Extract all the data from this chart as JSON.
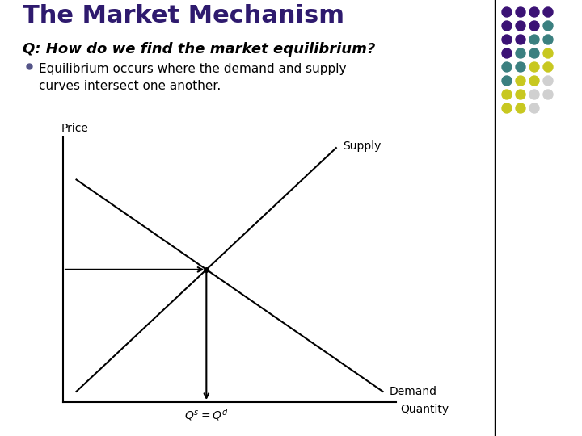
{
  "title": "The Market Mechanism",
  "subtitle": "Q: How do we find the market equilibrium?",
  "bullet": "Equilibrium occurs where the demand and supply\ncurves intersect one another.",
  "title_color": "#2E1A6E",
  "subtitle_color": "#000000",
  "bg_color": "#FFFFFF",
  "supply_label": "Supply",
  "demand_label": "Demand",
  "price_label": "Price",
  "quantity_label": "Quantity",
  "eq_label_s": "s",
  "eq_label_d": "d",
  "dot_rows": [
    [
      "#3B1275",
      "#3B1275",
      "#3B1275",
      "#3B1275"
    ],
    [
      "#3B1275",
      "#3B1275",
      "#3B1275",
      "#3B8080"
    ],
    [
      "#3B1275",
      "#3B1275",
      "#3B8080",
      "#3B8080"
    ],
    [
      "#3B1275",
      "#3B8080",
      "#3B8080",
      "#C8C820"
    ],
    [
      "#3B8080",
      "#3B8080",
      "#C8C820",
      "#C8C820"
    ],
    [
      "#3B8080",
      "#C8C820",
      "#C8C820",
      "#D0D0D0"
    ],
    [
      "#C8C820",
      "#C8C820",
      "#D0D0D0",
      "#D0D0D0"
    ],
    [
      "#C8C820",
      "#C8C820",
      "#D0D0D0",
      ""
    ]
  ],
  "title_fontsize": 22,
  "subtitle_fontsize": 13,
  "bullet_fontsize": 11,
  "chart_label_fontsize": 10,
  "eq_fontsize": 10
}
